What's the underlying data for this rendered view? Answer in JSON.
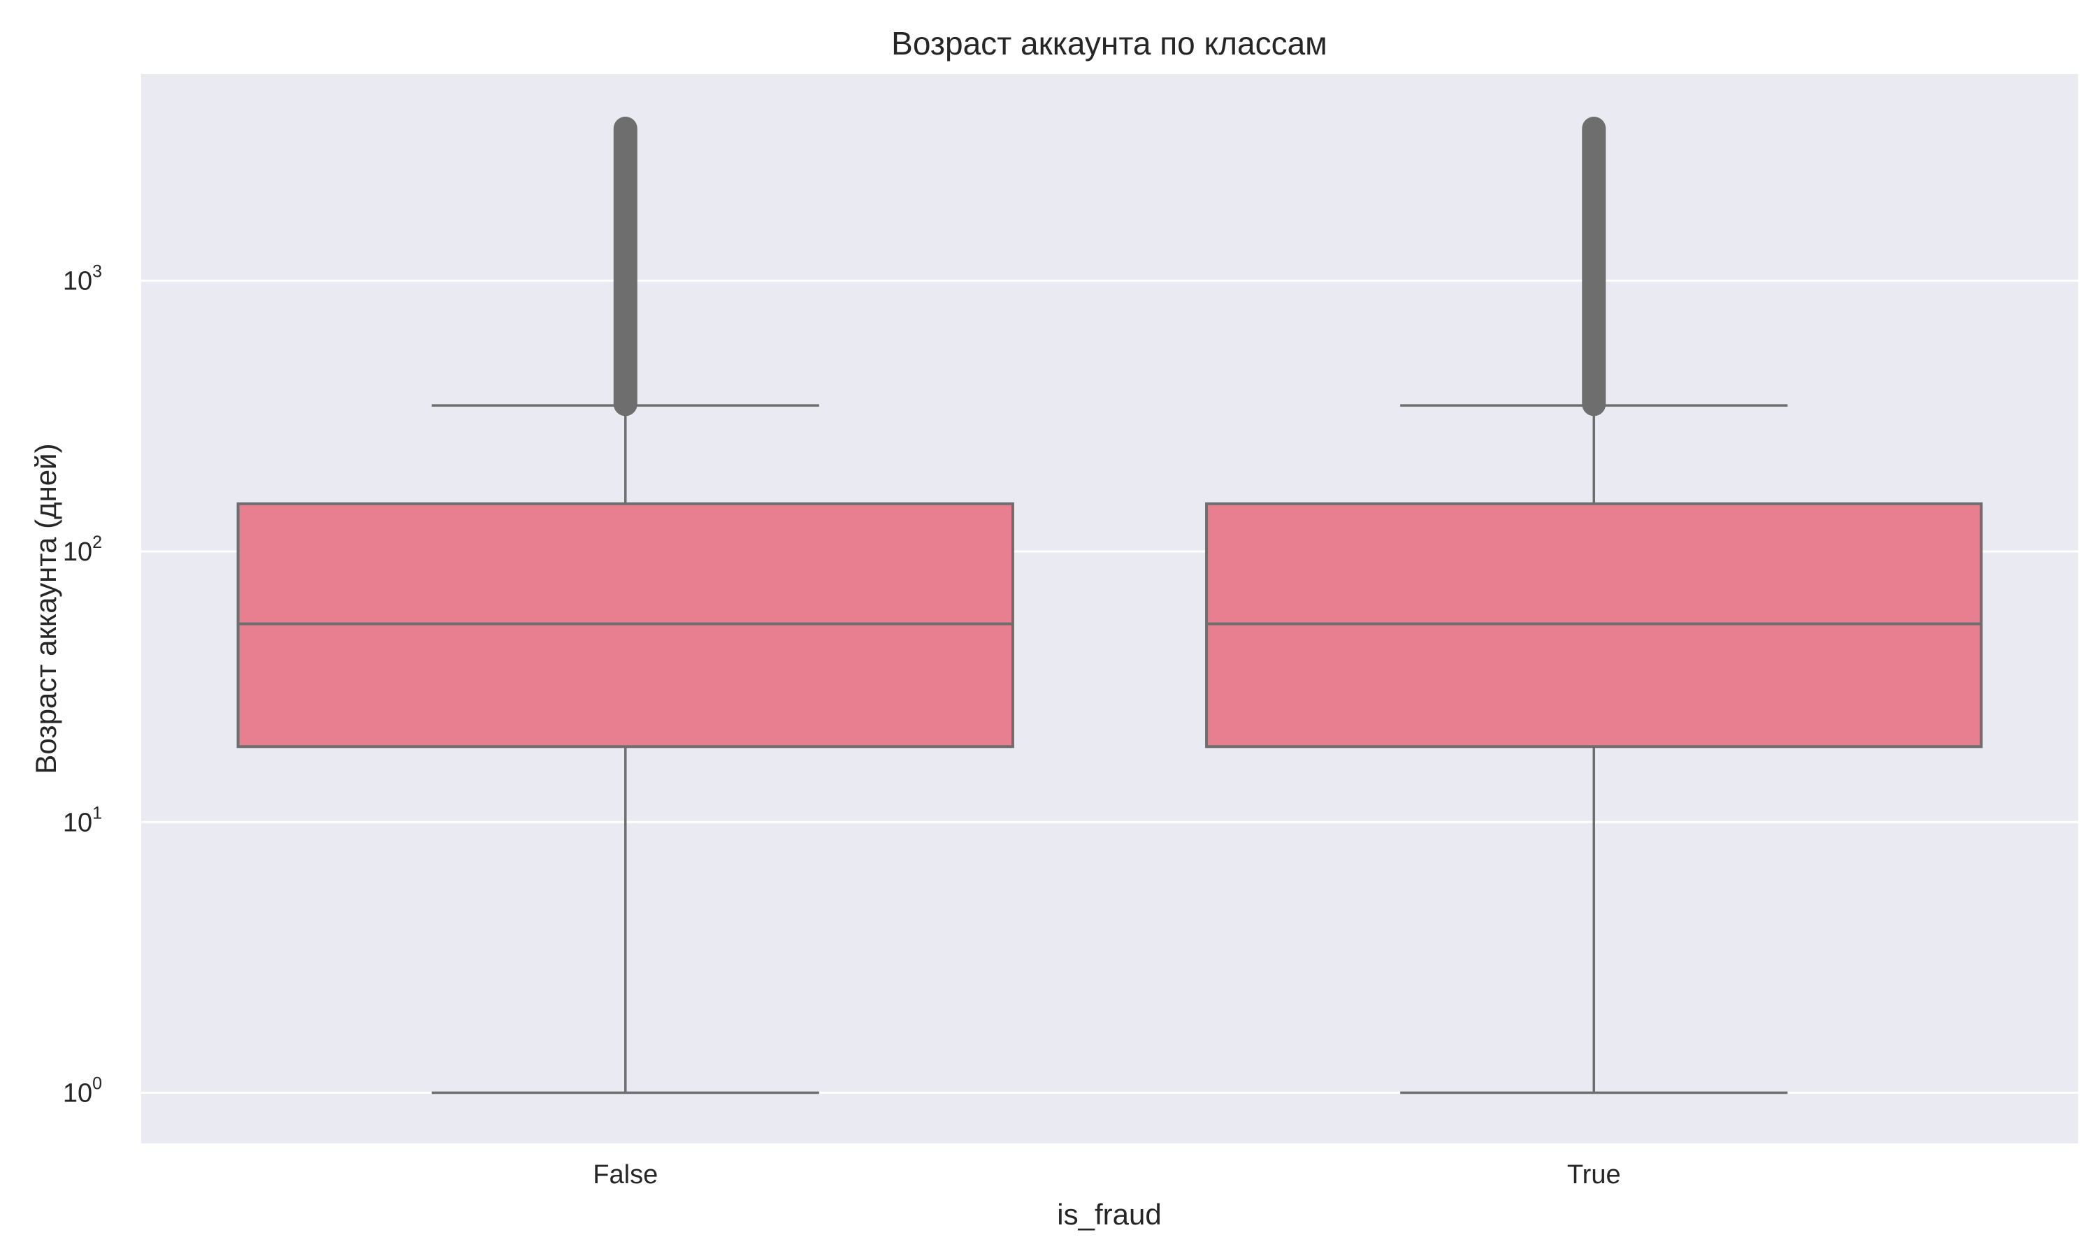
{
  "chart_data": {
    "type": "box",
    "title": "Возраст аккаунта по классам",
    "xlabel": "is_fraud",
    "ylabel": "Возраст аккаунта (дней)",
    "yscale": "log",
    "ylim": [
      0.65,
      5800
    ],
    "y_ticks": [
      {
        "value": 1,
        "base": "10",
        "exp": "0"
      },
      {
        "value": 10,
        "base": "10",
        "exp": "1"
      },
      {
        "value": 100,
        "base": "10",
        "exp": "2"
      },
      {
        "value": 1000,
        "base": "10",
        "exp": "3"
      }
    ],
    "grid": true,
    "box_color": "#e77f91",
    "line_color": "#6e6e6e",
    "background_color": "#eaeaf2",
    "categories": [
      "False",
      "True"
    ],
    "boxes": [
      {
        "category": "False",
        "whisker_low": 1,
        "q1": 19,
        "median": 54,
        "q3": 150,
        "whisker_high": 346,
        "outliers_min": 350,
        "outliers_max": 3650
      },
      {
        "category": "True",
        "whisker_low": 1,
        "q1": 19,
        "median": 54,
        "q3": 150,
        "whisker_high": 346,
        "outliers_min": 350,
        "outliers_max": 3650
      }
    ]
  }
}
